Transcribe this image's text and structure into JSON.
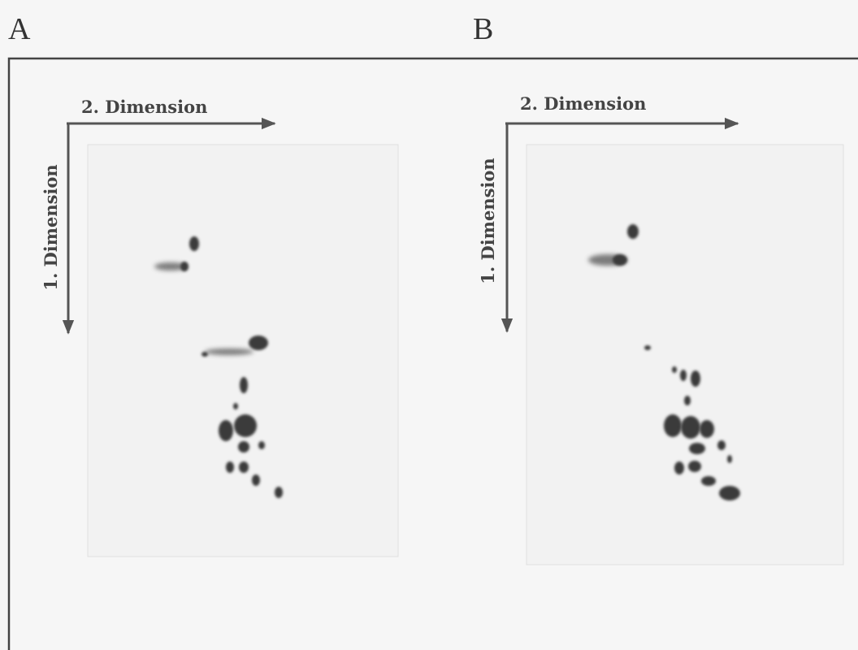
{
  "panels": [
    {
      "label": "A",
      "x_axis": "2. Dimension",
      "y_axis": "1. Dimension"
    },
    {
      "label": "B",
      "x_axis": "2. Dimension",
      "y_axis": "1. Dimension"
    }
  ]
}
